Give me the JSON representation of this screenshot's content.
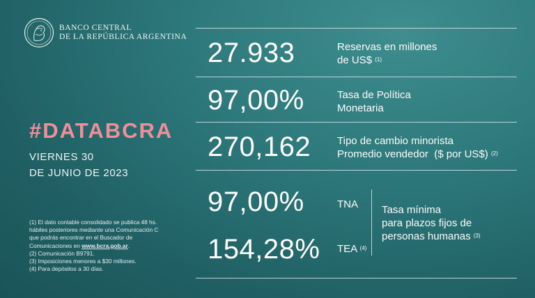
{
  "bank": {
    "line1": "BANCO CENTRAL",
    "line2": "DE LA REPÚBLICA ARGENTINA"
  },
  "hashtag": "#DATABCRA",
  "date": {
    "line1": "VIERNES 30",
    "line2": "DE JUNIO DE 2023"
  },
  "notes": {
    "n1a": "(1) El dato contable consolidado se publica 48 hs.",
    "n1b": "hábiles posteriores mediante una Comunicación C",
    "n1c": "que podrás encontrar en el Buscador de",
    "n1d": "Comunicaciones en ",
    "n1link": "www.bcra.gob.ar",
    "n1end": ".",
    "n2": "(2) Comunicación B9791.",
    "n3": "(3) Imposiciones menores a $30 millones.",
    "n4": "(4) Para depósitos a 30 días."
  },
  "indicators": {
    "reservas": {
      "value": "27.933",
      "label1": "Reservas en millones",
      "label2": "de US$",
      "note": "(1)"
    },
    "tasa_politica": {
      "value": "97,00%",
      "label1": "Tasa de Política",
      "label2": "Monetaria"
    },
    "tipo_cambio": {
      "value": "270,162",
      "label1": "Tipo de cambio minorista",
      "label2": "Promedio vendedor  ($ por US$)",
      "note": "(2)"
    },
    "tna": {
      "value": "97,00%",
      "label": "TNA"
    },
    "tea": {
      "value": "154,28%",
      "label": "TEA",
      "note": "(4)"
    },
    "plazos_fijos": {
      "label1": "Tasa mínima",
      "label2": "para plazos fijos de",
      "label3": "personas humanas",
      "note": "(3)"
    }
  },
  "colors": {
    "background": "#2a6f72",
    "accent": "#f08f98"
  }
}
